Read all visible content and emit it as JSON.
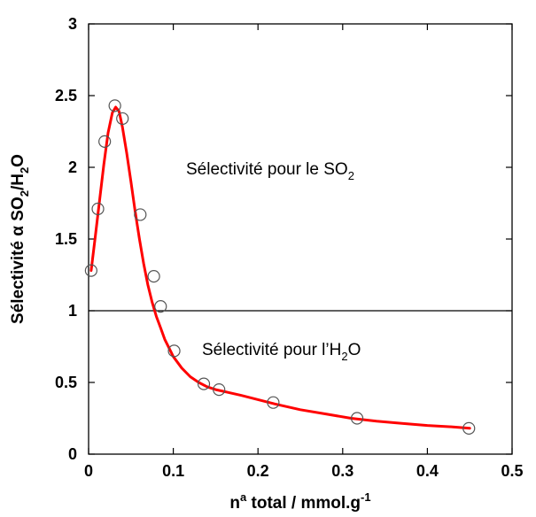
{
  "chart_data": {
    "type": "scatter",
    "title": "",
    "xlabel": {
      "prefix": "n",
      "sup": "a",
      "mid": " total / mmol.g",
      "sup2": "-1"
    },
    "ylabel": {
      "p1": "Sélectivité α SO",
      "sub1": "2",
      "p2": "/H",
      "sub2": "2",
      "p3": "O"
    },
    "xlim": [
      0,
      0.5
    ],
    "ylim": [
      0,
      3
    ],
    "x_ticks": [
      "0",
      "0.1",
      "0.2",
      "0.3",
      "0.4",
      "0.5"
    ],
    "y_ticks": [
      "0",
      "0.5",
      "1",
      "1.5",
      "2",
      "2.5",
      "3"
    ],
    "grid": false,
    "reference_line": 1,
    "annotations": {
      "above": {
        "text": "Sélectivité pour le SO",
        "sub": "2"
      },
      "below": {
        "text": "Sélectivité pour l’H",
        "sub": "2",
        "tail": "O"
      }
    },
    "series": [
      {
        "kind": "points",
        "marker": "open-circle",
        "color": "#555555",
        "x": [
          0.003,
          0.011,
          0.019,
          0.031,
          0.04,
          0.061,
          0.077,
          0.085,
          0.101,
          0.136,
          0.154,
          0.218,
          0.317,
          0.449
        ],
        "y": [
          1.28,
          1.71,
          2.18,
          2.43,
          2.34,
          1.67,
          1.24,
          1.03,
          0.72,
          0.49,
          0.45,
          0.36,
          0.25,
          0.18
        ]
      },
      {
        "kind": "fit",
        "color": "#ff0000",
        "x": [
          0.003,
          0.008,
          0.013,
          0.018,
          0.023,
          0.028,
          0.032,
          0.036,
          0.04,
          0.045,
          0.05,
          0.055,
          0.06,
          0.065,
          0.07,
          0.075,
          0.08,
          0.085,
          0.09,
          0.095,
          0.1,
          0.11,
          0.12,
          0.13,
          0.14,
          0.15,
          0.165,
          0.18,
          0.2,
          0.22,
          0.25,
          0.28,
          0.31,
          0.34,
          0.37,
          0.4,
          0.43,
          0.45
        ],
        "y": [
          1.28,
          1.52,
          1.77,
          2.02,
          2.24,
          2.38,
          2.42,
          2.39,
          2.28,
          2.1,
          1.9,
          1.69,
          1.5,
          1.33,
          1.18,
          1.06,
          0.96,
          0.88,
          0.8,
          0.74,
          0.68,
          0.6,
          0.54,
          0.5,
          0.47,
          0.45,
          0.43,
          0.41,
          0.38,
          0.35,
          0.31,
          0.28,
          0.25,
          0.23,
          0.215,
          0.2,
          0.19,
          0.18
        ]
      }
    ]
  }
}
